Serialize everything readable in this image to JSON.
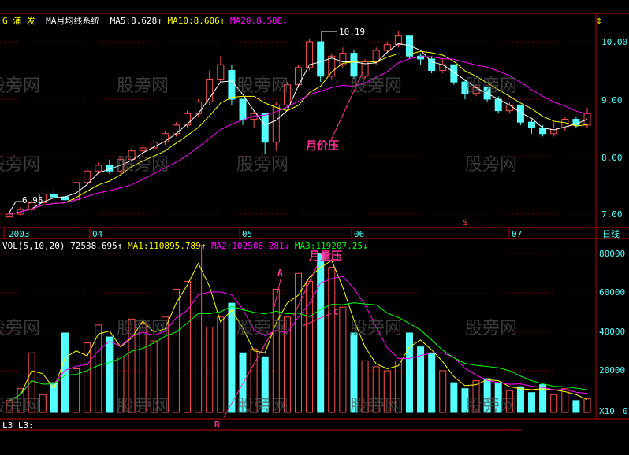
{
  "header": {
    "stock": "G 浦  发",
    "indicator": "MA月均线系统",
    "ma5": "MA5:8.628",
    "ma10": "MA10:8.606",
    "ma20": "MA20:8.588"
  },
  "volume_header": {
    "label": "VOL(5,10,20)",
    "value": "72538.695",
    "ma1": "MA1:110895.789",
    "ma2": "MA2:102508.281",
    "ma3": "MA3:119207.25"
  },
  "price_axis": [
    "10.00",
    "9.00",
    "8.00",
    "7.00"
  ],
  "volume_axis": [
    "80000",
    "60000",
    "40000",
    "20000",
    "0"
  ],
  "volume_unit": "X10",
  "period": "日线",
  "time_labels": [
    "2003",
    "04",
    "05",
    "06",
    "07"
  ],
  "annotations": {
    "high": "10.19",
    "low": "6.95",
    "price_press": "月价压",
    "volume_press": "月量压",
    "a": "A",
    "b": "B",
    "c": "C",
    "marker": "$"
  },
  "footer": "L3 L3:",
  "watermark": "股旁网",
  "colors": {
    "up": "#ff5050",
    "down": "#54ffff",
    "ma5": "#ffffff",
    "ma10": "#ffff00",
    "ma20": "#ff00ff",
    "ma3vol": "#00ff00",
    "axis": "#c00000",
    "annotation": "#ff3399"
  },
  "chart_data": {
    "type": "candlestick",
    "price_range": [
      6.85,
      10.3
    ],
    "candles": [
      [
        6.95,
        7.05,
        6.95,
        7.0
      ],
      [
        7.0,
        7.12,
        6.98,
        7.08
      ],
      [
        7.08,
        7.25,
        7.05,
        7.2
      ],
      [
        7.2,
        7.4,
        7.15,
        7.35
      ],
      [
        7.35,
        7.45,
        7.25,
        7.3
      ],
      [
        7.3,
        7.35,
        7.2,
        7.25
      ],
      [
        7.25,
        7.6,
        7.2,
        7.55
      ],
      [
        7.55,
        7.8,
        7.5,
        7.75
      ],
      [
        7.75,
        7.9,
        7.7,
        7.85
      ],
      [
        7.85,
        7.95,
        7.7,
        7.75
      ],
      [
        7.75,
        8.0,
        7.7,
        7.95
      ],
      [
        7.95,
        8.15,
        7.9,
        8.1
      ],
      [
        8.1,
        8.2,
        8.0,
        8.15
      ],
      [
        8.15,
        8.3,
        8.1,
        8.25
      ],
      [
        8.25,
        8.45,
        8.2,
        8.4
      ],
      [
        8.4,
        8.6,
        8.35,
        8.55
      ],
      [
        8.55,
        8.8,
        8.5,
        8.75
      ],
      [
        8.75,
        9.0,
        8.7,
        8.95
      ],
      [
        8.95,
        9.5,
        8.9,
        9.35
      ],
      [
        9.35,
        9.75,
        9.3,
        9.6
      ],
      [
        9.5,
        9.6,
        8.9,
        9.0
      ],
      [
        9.0,
        9.0,
        8.55,
        8.65
      ],
      [
        8.65,
        8.8,
        8.5,
        8.75
      ],
      [
        8.75,
        8.75,
        8.05,
        8.25
      ],
      [
        8.25,
        8.95,
        8.1,
        8.9
      ],
      [
        8.9,
        9.3,
        8.85,
        9.25
      ],
      [
        9.25,
        9.6,
        9.2,
        9.55
      ],
      [
        9.55,
        10.05,
        9.5,
        10.0
      ],
      [
        10.0,
        10.0,
        9.3,
        9.4
      ],
      [
        9.4,
        9.8,
        9.35,
        9.75
      ],
      [
        9.6,
        9.9,
        9.55,
        9.8
      ],
      [
        9.8,
        9.85,
        9.35,
        9.4
      ],
      [
        9.4,
        9.7,
        9.35,
        9.65
      ],
      [
        9.65,
        9.9,
        9.6,
        9.85
      ],
      [
        9.85,
        10.0,
        9.8,
        9.95
      ],
      [
        9.95,
        10.19,
        9.9,
        10.1
      ],
      [
        10.1,
        10.1,
        9.7,
        9.75
      ],
      [
        9.75,
        9.8,
        9.6,
        9.7
      ],
      [
        9.7,
        9.75,
        9.45,
        9.5
      ],
      [
        9.5,
        9.7,
        9.45,
        9.6
      ],
      [
        9.6,
        9.6,
        9.25,
        9.3
      ],
      [
        9.3,
        9.35,
        9.0,
        9.1
      ],
      [
        9.1,
        9.25,
        9.05,
        9.2
      ],
      [
        9.2,
        9.2,
        8.95,
        9.0
      ],
      [
        9.0,
        9.05,
        8.75,
        8.8
      ],
      [
        8.8,
        8.95,
        8.75,
        8.9
      ],
      [
        8.9,
        8.9,
        8.55,
        8.6
      ],
      [
        8.6,
        8.65,
        8.4,
        8.5
      ],
      [
        8.5,
        8.55,
        8.35,
        8.4
      ],
      [
        8.4,
        8.6,
        8.35,
        8.5
      ],
      [
        8.5,
        8.7,
        8.45,
        8.65
      ],
      [
        8.65,
        8.7,
        8.5,
        8.55
      ],
      [
        8.55,
        8.85,
        8.5,
        8.75
      ]
    ],
    "volumes": [
      6000,
      12000,
      30000,
      9000,
      15000,
      40000,
      22000,
      35000,
      44000,
      38000,
      28000,
      47000,
      45000,
      36000,
      48000,
      62000,
      66000,
      84000,
      43000,
      48000,
      55000,
      30000,
      32000,
      28000,
      62000,
      48000,
      70000,
      66000,
      80000,
      73000,
      53000,
      40000,
      26000,
      23000,
      21000,
      26000,
      40000,
      33000,
      30000,
      21000,
      15000,
      12000,
      16000,
      17000,
      15000,
      11000,
      13000,
      10000,
      14000,
      9000,
      12000,
      6000,
      7000
    ],
    "volume_range": [
      0,
      82000
    ]
  }
}
